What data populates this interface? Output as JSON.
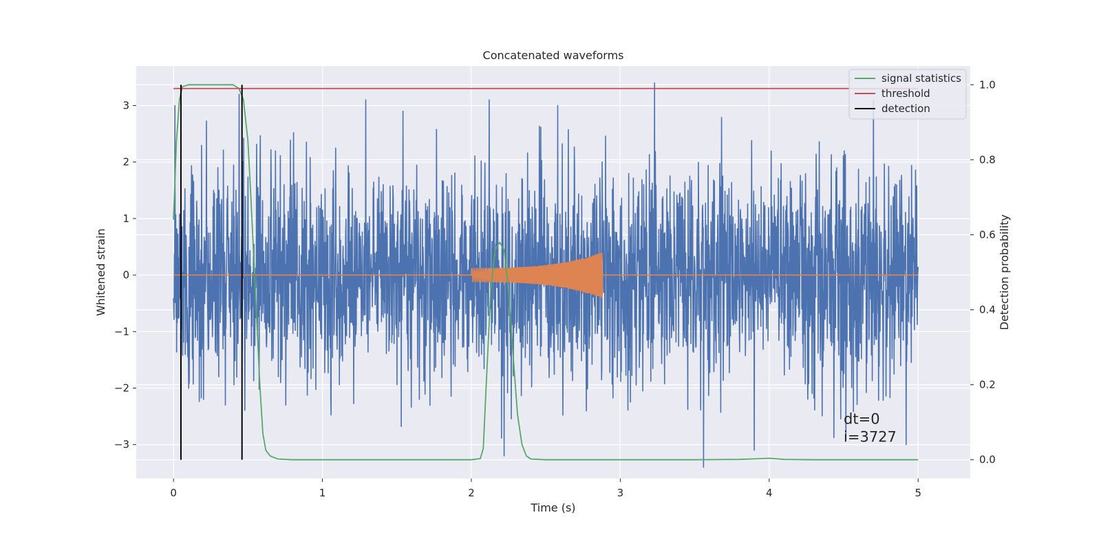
{
  "chart_data": {
    "type": "line",
    "title": "Concatenated waveforms",
    "xlabel": "Time (s)",
    "ylabel_left": "Whitened strain",
    "ylabel_right": "Detection probability",
    "xlim": [
      -0.25,
      5.35
    ],
    "ylim_left": [
      -3.6,
      3.7
    ],
    "ylim_right": [
      -0.05,
      1.05
    ],
    "xticks": [
      0,
      1,
      2,
      3,
      4,
      5
    ],
    "yticks_left": [
      -3,
      -2,
      -1,
      0,
      1,
      2,
      3
    ],
    "yticks_right": [
      0.0,
      0.2,
      0.4,
      0.6,
      0.8,
      1.0
    ],
    "xtick_labels": [
      "0",
      "1",
      "2",
      "3",
      "4",
      "5"
    ],
    "ytick_labels_left": [
      "−3",
      "−2",
      "−1",
      "0",
      "1",
      "2",
      "3"
    ],
    "ytick_labels_right": [
      "0.0",
      "0.2",
      "0.4",
      "0.6",
      "0.8",
      "1.0"
    ],
    "grid": true,
    "legend_position": "top-right",
    "series": [
      {
        "kind": "noise",
        "color": "#4c72b0",
        "x_range": [
          0,
          5
        ],
        "sample_count": 2600,
        "std": 0.95,
        "spikes": [
          {
            "x": 0.01,
            "y": 3.0
          },
          {
            "x": 0.05,
            "y": -2.2
          },
          {
            "x": 0.44,
            "y": 3.2
          },
          {
            "x": 1.29,
            "y": 3.1
          },
          {
            "x": 2.12,
            "y": 3.1
          },
          {
            "x": 2.22,
            "y": -3.2
          },
          {
            "x": 2.58,
            "y": 3.0
          },
          {
            "x": 3.23,
            "y": 3.4
          },
          {
            "x": 3.56,
            "y": -3.4
          },
          {
            "x": 3.9,
            "y": -3.1
          },
          {
            "x": 4.7,
            "y": 3.1
          },
          {
            "x": 4.92,
            "y": -3.0
          }
        ]
      },
      {
        "kind": "chirp",
        "color": "#dd8452",
        "x_range": [
          0,
          5
        ],
        "chirp_start": 2.0,
        "chirp_end": 2.88,
        "amplitude_start": 0.12,
        "amplitude_end": 0.4
      },
      {
        "name": "signal statistics",
        "axis": "right",
        "color": "#55a868",
        "x": [
          0,
          0.02,
          0.04,
          0.06,
          0.1,
          0.15,
          0.4,
          0.44,
          0.47,
          0.5,
          0.52,
          0.55,
          0.58,
          0.6,
          0.62,
          0.65,
          0.7,
          0.8,
          2.0,
          2.06,
          2.08,
          2.1,
          2.13,
          2.16,
          2.19,
          2.22,
          2.25,
          2.28,
          2.31,
          2.34,
          2.37,
          2.4,
          2.5,
          3.5,
          3.8,
          3.95,
          4.0,
          4.1,
          4.3,
          5.0
        ],
        "y": [
          0.64,
          0.85,
          0.96,
          0.995,
          1.0,
          1.0,
          1.0,
          0.99,
          0.96,
          0.85,
          0.7,
          0.45,
          0.2,
          0.07,
          0.025,
          0.01,
          0.002,
          0.0,
          0.0,
          0.003,
          0.03,
          0.2,
          0.45,
          0.56,
          0.58,
          0.56,
          0.45,
          0.28,
          0.12,
          0.04,
          0.01,
          0.002,
          0.0,
          0.0,
          0.001,
          0.003,
          0.004,
          0.001,
          0.0,
          0.0
        ]
      },
      {
        "name": "threshold",
        "axis": "right",
        "color": "#c44e52",
        "x": [
          0,
          5
        ],
        "y": [
          0.99,
          0.99
        ]
      },
      {
        "name": "detection",
        "axis": "right",
        "color": "#000000",
        "vlines": [
          0.05,
          0.46
        ],
        "y_range": [
          0,
          1
        ]
      }
    ],
    "annotations": [
      {
        "text": "dt=0",
        "x": 4.5,
        "y_right": 0.11
      },
      {
        "text": "i=3727",
        "x": 4.5,
        "y_right": 0.063
      }
    ]
  }
}
